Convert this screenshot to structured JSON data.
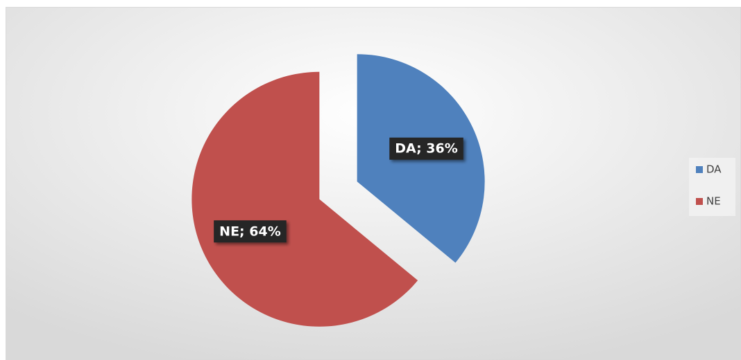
{
  "chart_data": {
    "type": "pie",
    "categories": [
      "DA",
      "NE"
    ],
    "values": [
      36,
      64
    ],
    "value_labels": [
      "DA; 36%",
      "NE; 64%"
    ],
    "colors": [
      "#4f81bd",
      "#c0504d"
    ],
    "legend": "right"
  }
}
